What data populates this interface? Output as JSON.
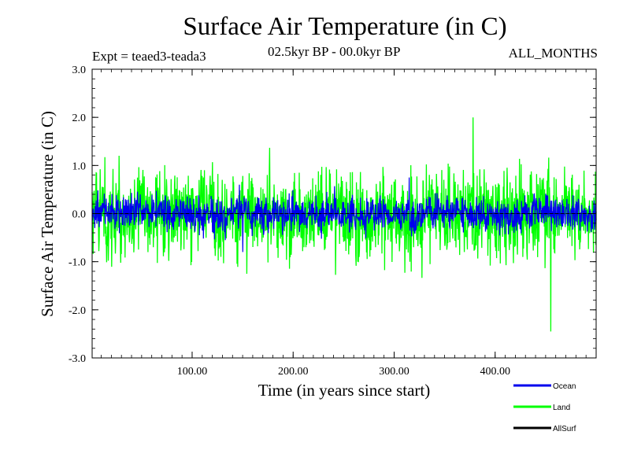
{
  "chart_data": {
    "type": "line",
    "title": "Surface Air Temperature (in C)",
    "subtitle_left": "Expt = teaed3-teada3",
    "subtitle_center": "02.5kyr BP - 00.0kyr BP",
    "subtitle_right": "ALL_MONTHS",
    "xlabel": "Time (in years since start)",
    "ylabel": "Surface Air Temperature (in C)",
    "xlim": [
      1,
      500
    ],
    "ylim": [
      -3.0,
      3.0
    ],
    "x_ticks": [
      100,
      200,
      300,
      400
    ],
    "x_tick_labels": [
      "100.00",
      "200.00",
      "300.00",
      "400.00"
    ],
    "y_ticks": [
      -3.0,
      -2.0,
      -1.0,
      0.0,
      1.0,
      2.0,
      3.0
    ],
    "y_tick_labels": [
      "-3.0",
      "-2.0",
      "-1.0",
      "0.0",
      "1.0",
      "2.0",
      "3.0"
    ],
    "legend_position": "bottom-right",
    "series": [
      {
        "name": "Ocean",
        "color": "#0000ee",
        "typical_range": [
          -0.6,
          0.6
        ],
        "peak": [
          315,
          0.75
        ],
        "trough": [
          150,
          -0.8
        ]
      },
      {
        "name": "Land",
        "color": "#00ff00",
        "typical_range": [
          -1.6,
          1.5
        ],
        "peak": [
          378,
          2.0
        ],
        "trough": [
          455,
          -2.45
        ]
      },
      {
        "name": "AllSurf",
        "color": "#000000",
        "mean": 0.0
      }
    ],
    "reference_line": {
      "y": 0.0,
      "style": "dashed"
    }
  }
}
